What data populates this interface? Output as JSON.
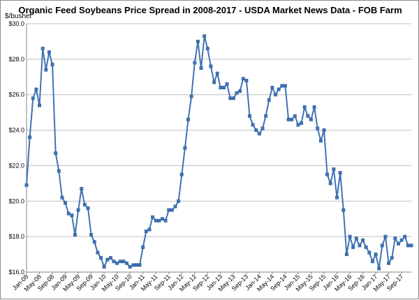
{
  "chart_data": {
    "type": "line",
    "title": "Organic Feed Soybeans Price Spread in 2008-2017 - USDA Market News Data - FOB Farm",
    "ylabel": "$/bushel",
    "xlabel": "",
    "ylim": [
      16.0,
      30.0
    ],
    "y_ticks": [
      "$16.0",
      "$18.0",
      "$20.0",
      "$22.0",
      "$24.0",
      "$26.0",
      "$28.0",
      "$30.0"
    ],
    "x_tick_labels": [
      "Jan-08",
      "May-08",
      "Sep-08",
      "Jan-09",
      "May-09",
      "Sep-09",
      "Jan-10",
      "May-10",
      "Sep-10",
      "Jan-11",
      "May-11",
      "Sep-11",
      "Jan-12",
      "May-12",
      "Sep-12",
      "Jan-13",
      "May-13",
      "Sep-13",
      "Jan-14",
      "May-14",
      "Sep-14",
      "Jan-15",
      "May-15",
      "Sep-15",
      "Jan-16",
      "May-16",
      "Sep-16",
      "Jan-17",
      "May-17",
      "Sep-17"
    ],
    "grid": "horizontal",
    "legend": "none",
    "series_color": "#3f73b4",
    "series": [
      {
        "values": [
          20.9,
          23.6,
          25.8,
          26.3,
          25.4,
          28.6,
          27.4,
          28.4,
          27.7,
          22.7,
          21.7,
          20.2,
          19.9,
          19.3,
          19.2,
          18.1,
          19.5,
          20.7,
          19.8,
          19.6,
          18.1,
          17.7,
          17.1,
          16.8,
          16.3,
          16.7,
          16.8,
          16.6,
          16.5,
          16.6,
          16.6,
          16.5,
          16.3,
          16.4,
          16.4,
          16.4,
          17.4,
          18.3,
          18.4,
          19.1,
          18.9,
          18.9,
          19.0,
          18.9,
          19.5,
          19.5,
          19.7,
          20.0,
          21.5,
          23.0,
          24.6,
          25.9,
          27.8,
          29.0,
          27.5,
          29.3,
          28.6,
          27.6,
          26.7,
          27.2,
          26.4,
          26.4,
          26.6,
          25.8,
          25.8,
          26.1,
          26.2,
          26.9,
          26.8,
          24.8,
          24.3,
          24.0,
          23.8,
          24.1,
          24.8,
          25.7,
          26.4,
          26.0,
          26.3,
          26.5,
          26.5,
          24.6,
          24.6,
          24.8,
          24.3,
          24.4,
          25.3,
          24.8,
          24.6,
          25.3,
          24.1,
          23.4,
          24.0,
          21.5,
          21.0,
          21.8,
          20.2,
          21.6,
          19.5,
          17.0,
          18.0,
          17.4,
          17.9,
          17.5,
          17.8,
          17.4,
          17.1,
          16.6,
          17.0,
          16.2,
          17.5,
          18.0,
          16.5,
          16.8,
          17.9,
          17.6,
          17.8,
          18.0,
          17.5,
          17.5
        ]
      }
    ]
  }
}
